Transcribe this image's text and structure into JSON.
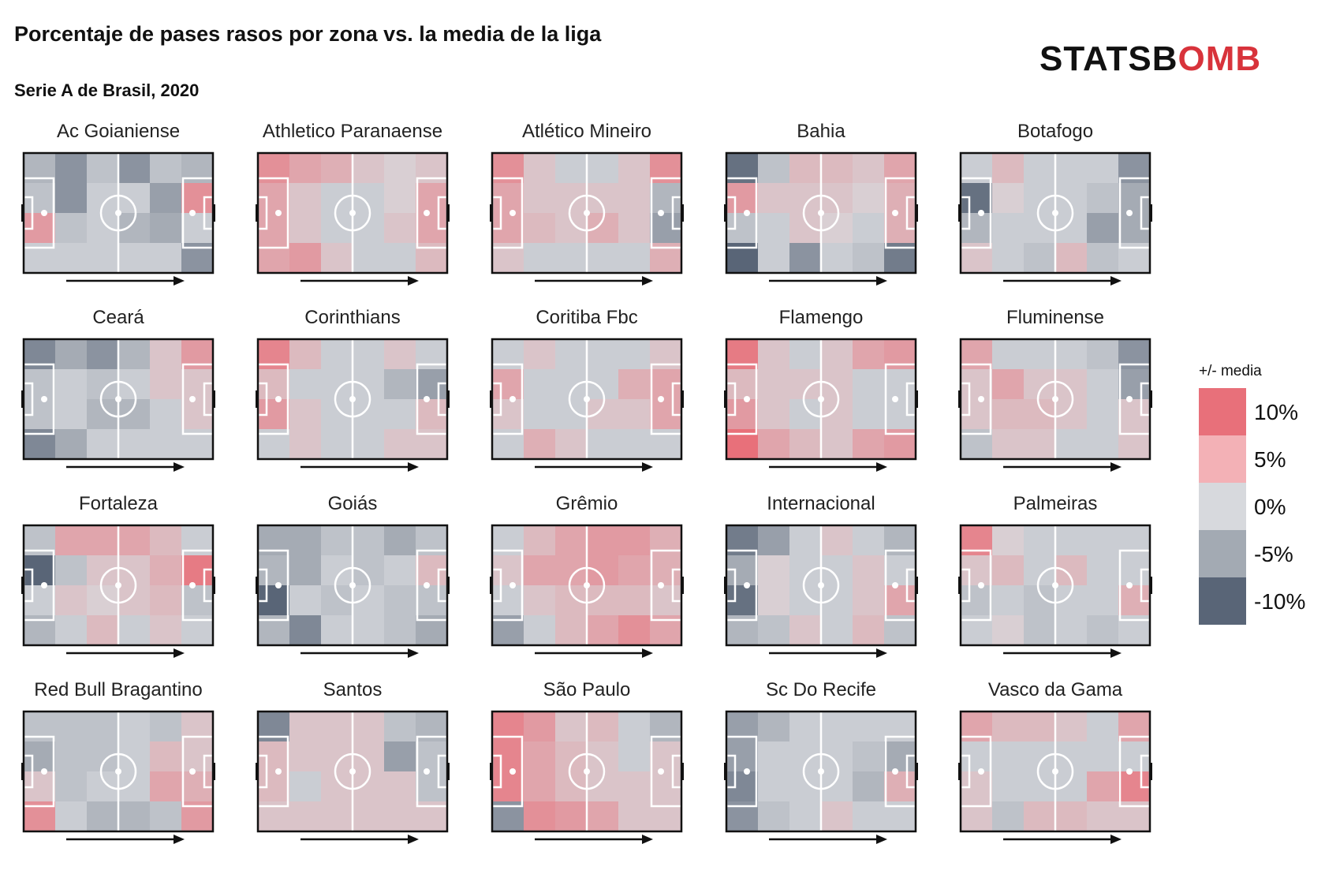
{
  "title": "Porcentaje de pases rasos por zona vs. la media de la liga",
  "subtitle": "Serie A de Brasil, 2020",
  "logo": {
    "text_main": "STATSB",
    "text_accent": "OMB",
    "brand_color": "#d8333b"
  },
  "legend": {
    "title": "+/- media",
    "entries": [
      {
        "label": "10%",
        "color": "#e8707a"
      },
      {
        "label": "5%",
        "color": "#f3b1b6"
      },
      {
        "label": "0%",
        "color": "#d7d9dd"
      },
      {
        "label": "-5%",
        "color": "#a3aab3"
      },
      {
        "label": "-10%",
        "color": "#596577"
      }
    ]
  },
  "chart_data": {
    "type": "heatmap",
    "grid": {
      "cols": 6,
      "rows": 4
    },
    "value_unit": "percentage points vs league average",
    "color_scale": {
      "min": -10,
      "max": 10,
      "low_color": "#596577",
      "mid_color": "#d7d9dd",
      "high_color": "#e8707a"
    },
    "teams": [
      {
        "name": "Ac Goianiense",
        "values": [
          [
            -3,
            -6,
            -2,
            -6,
            -2,
            -3
          ],
          [
            -2,
            -6,
            -1,
            -1,
            -5,
            7
          ],
          [
            6,
            -2,
            -1,
            -3,
            -4,
            -1
          ],
          [
            -1,
            -1,
            -1,
            -1,
            -1,
            -6
          ]
        ]
      },
      {
        "name": "Athletico Paranaense",
        "values": [
          [
            7,
            5,
            4,
            2,
            1,
            2
          ],
          [
            5,
            2,
            -1,
            -1,
            1,
            5
          ],
          [
            5,
            2,
            -1,
            -1,
            2,
            5
          ],
          [
            5,
            6,
            2,
            -1,
            -1,
            3
          ]
        ]
      },
      {
        "name": "Atlético Mineiro",
        "values": [
          [
            7,
            2,
            -1,
            -1,
            2,
            7
          ],
          [
            5,
            2,
            2,
            2,
            2,
            -3
          ],
          [
            5,
            3,
            2,
            4,
            2,
            -5
          ],
          [
            2,
            -1,
            -1,
            -1,
            -1,
            4
          ]
        ]
      },
      {
        "name": "Bahia",
        "values": [
          [
            -9,
            -2,
            3,
            3,
            2,
            5
          ],
          [
            6,
            2,
            2,
            2,
            1,
            4
          ],
          [
            -2,
            -1,
            2,
            1,
            -1,
            4
          ],
          [
            -12,
            -1,
            -6,
            -1,
            -2,
            -8
          ]
        ]
      },
      {
        "name": "Botafogo",
        "values": [
          [
            -1,
            3,
            -1,
            -1,
            -1,
            -6
          ],
          [
            -9,
            1,
            -1,
            -1,
            -2,
            -4
          ],
          [
            -3,
            -1,
            -1,
            -1,
            -5,
            -4
          ],
          [
            2,
            -1,
            -2,
            3,
            -2,
            -1
          ]
        ]
      },
      {
        "name": "Ceará",
        "values": [
          [
            -7,
            -4,
            -6,
            -3,
            2,
            6
          ],
          [
            -2,
            -1,
            -2,
            -1,
            2,
            2
          ],
          [
            -2,
            -1,
            -3,
            -3,
            -1,
            2
          ],
          [
            -7,
            -4,
            -1,
            -1,
            -1,
            -1
          ]
        ]
      },
      {
        "name": "Corinthians",
        "values": [
          [
            8,
            3,
            -1,
            -1,
            2,
            -1
          ],
          [
            3,
            -1,
            -1,
            -1,
            -3,
            -5
          ],
          [
            6,
            2,
            -1,
            -1,
            -1,
            3
          ],
          [
            -1,
            2,
            -1,
            -1,
            2,
            2
          ]
        ]
      },
      {
        "name": "Coritiba Fbc",
        "values": [
          [
            -1,
            2,
            -1,
            -1,
            -1,
            2
          ],
          [
            5,
            -1,
            -1,
            -1,
            4,
            5
          ],
          [
            2,
            -1,
            -1,
            2,
            2,
            5
          ],
          [
            -1,
            4,
            2,
            -1,
            -1,
            -1
          ]
        ]
      },
      {
        "name": "Flamengo",
        "values": [
          [
            9,
            2,
            -1,
            2,
            5,
            6
          ],
          [
            3,
            2,
            2,
            2,
            -1,
            -1
          ],
          [
            6,
            2,
            -1,
            2,
            -1,
            -1
          ],
          [
            10,
            5,
            3,
            2,
            5,
            6
          ]
        ]
      },
      {
        "name": "Fluminense",
        "values": [
          [
            5,
            -1,
            -1,
            -1,
            -2,
            -6
          ],
          [
            2,
            5,
            2,
            2,
            -1,
            -5
          ],
          [
            2,
            3,
            3,
            2,
            -1,
            2
          ],
          [
            -2,
            2,
            2,
            -1,
            -1,
            2
          ]
        ]
      },
      {
        "name": "Fortaleza",
        "values": [
          [
            -2,
            5,
            5,
            5,
            3,
            -1
          ],
          [
            -11,
            -2,
            2,
            2,
            4,
            9
          ],
          [
            -1,
            2,
            1,
            2,
            3,
            -2
          ],
          [
            -3,
            -1,
            3,
            -1,
            2,
            -1
          ]
        ]
      },
      {
        "name": "Goiás",
        "values": [
          [
            -4,
            -4,
            -2,
            -2,
            -4,
            -2
          ],
          [
            -3,
            -4,
            -1,
            -2,
            -1,
            3
          ],
          [
            -11,
            -1,
            -2,
            -1,
            -2,
            -2
          ],
          [
            -3,
            -7,
            -1,
            -1,
            -2,
            -4
          ]
        ]
      },
      {
        "name": "Grêmio",
        "values": [
          [
            -1,
            3,
            5,
            6,
            6,
            4
          ],
          [
            2,
            5,
            5,
            6,
            5,
            4
          ],
          [
            -1,
            2,
            3,
            3,
            3,
            2
          ],
          [
            -5,
            -1,
            3,
            5,
            7,
            5
          ]
        ]
      },
      {
        "name": "Internacional",
        "values": [
          [
            -8,
            -5,
            -1,
            2,
            -1,
            -3
          ],
          [
            -4,
            1,
            -1,
            -1,
            2,
            -1
          ],
          [
            -9,
            1,
            -1,
            -1,
            2,
            5
          ],
          [
            -3,
            -2,
            2,
            -1,
            3,
            -2
          ]
        ]
      },
      {
        "name": "Palmeiras",
        "values": [
          [
            8,
            1,
            -1,
            -1,
            -1,
            -1
          ],
          [
            2,
            3,
            -1,
            3,
            -1,
            -1
          ],
          [
            -2,
            -1,
            -2,
            -1,
            -1,
            4
          ],
          [
            -1,
            1,
            -2,
            -1,
            -2,
            -1
          ]
        ]
      },
      {
        "name": "Red Bull Bragantino",
        "values": [
          [
            -2,
            -2,
            -2,
            -1,
            -2,
            2
          ],
          [
            -4,
            -2,
            -2,
            -1,
            3,
            2
          ],
          [
            2,
            -2,
            -1,
            -1,
            5,
            4
          ],
          [
            7,
            -1,
            -3,
            -3,
            -2,
            6
          ]
        ]
      },
      {
        "name": "Santos",
        "values": [
          [
            -7,
            2,
            2,
            2,
            -2,
            -3
          ],
          [
            3,
            2,
            2,
            2,
            -5,
            -2
          ],
          [
            3,
            -1,
            2,
            2,
            2,
            -2
          ],
          [
            2,
            2,
            2,
            2,
            2,
            2
          ]
        ]
      },
      {
        "name": "São Paulo",
        "values": [
          [
            8,
            6,
            2,
            3,
            -1,
            -3
          ],
          [
            8,
            5,
            3,
            2,
            -1,
            2
          ],
          [
            8,
            5,
            3,
            2,
            2,
            2
          ],
          [
            -6,
            7,
            6,
            5,
            2,
            2
          ]
        ]
      },
      {
        "name": "Sc Do Recife",
        "values": [
          [
            -5,
            -3,
            -1,
            -1,
            -1,
            -1
          ],
          [
            -5,
            -1,
            -1,
            -1,
            -2,
            -4
          ],
          [
            -7,
            -1,
            -1,
            -1,
            -3,
            4
          ],
          [
            -6,
            -2,
            -1,
            2,
            -1,
            -1
          ]
        ]
      },
      {
        "name": "Vasco da Gama",
        "values": [
          [
            5,
            3,
            3,
            2,
            -1,
            5
          ],
          [
            -1,
            -1,
            -1,
            -1,
            -1,
            -1
          ],
          [
            2,
            -1,
            -1,
            -1,
            5,
            8
          ],
          [
            2,
            -2,
            3,
            3,
            2,
            2
          ]
        ]
      }
    ]
  }
}
